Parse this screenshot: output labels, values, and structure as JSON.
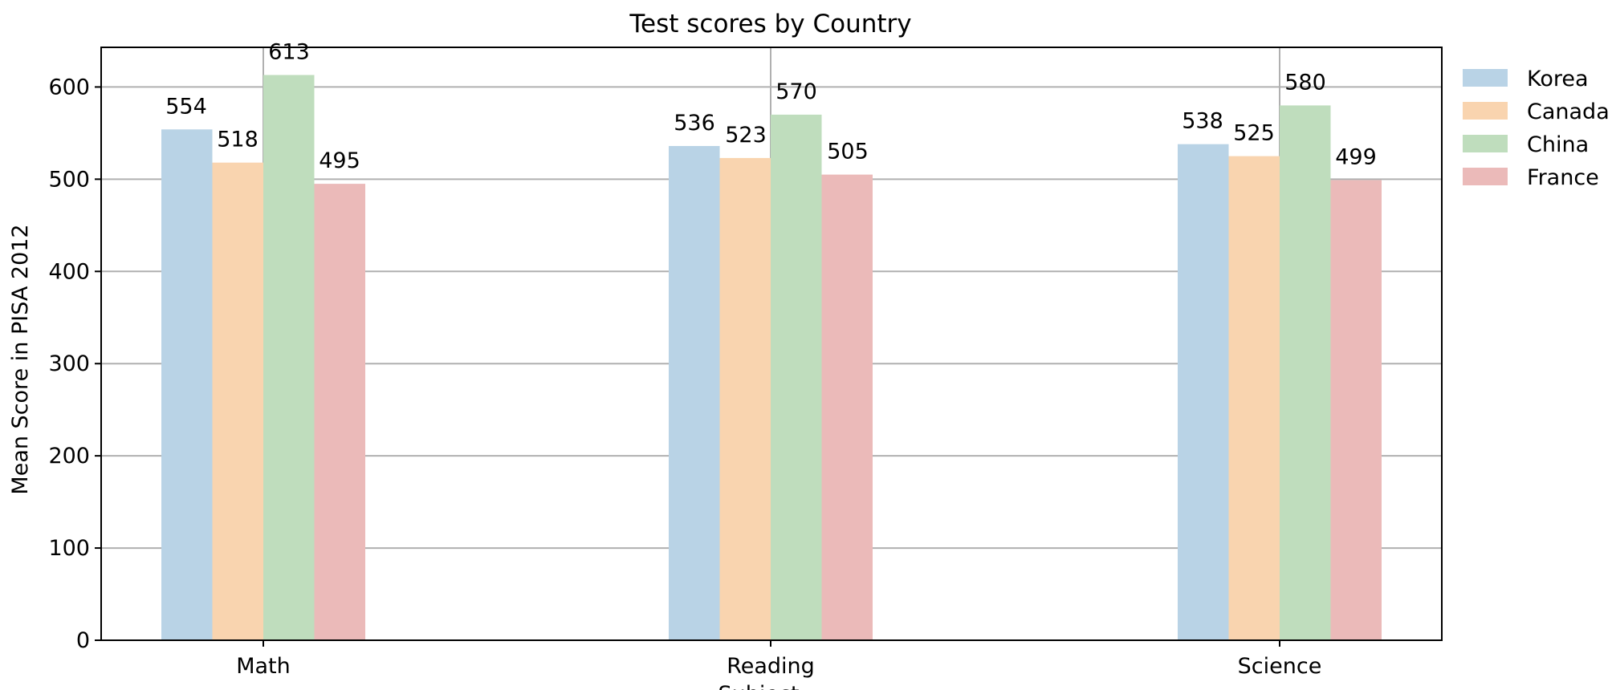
{
  "chart_data": {
    "type": "bar",
    "title": "Test scores by Country",
    "xlabel": "Subject",
    "ylabel": "Mean Score in PISA 2012",
    "categories": [
      "Math",
      "Reading",
      "Science"
    ],
    "series": [
      {
        "name": "Korea",
        "values": [
          554,
          536,
          538
        ],
        "color": "#b9d3e6"
      },
      {
        "name": "Canada",
        "values": [
          518,
          523,
          525
        ],
        "color": "#f9d4af"
      },
      {
        "name": "China",
        "values": [
          613,
          570,
          580
        ],
        "color": "#bfddbd"
      },
      {
        "name": "France",
        "values": [
          495,
          505,
          499
        ],
        "color": "#ebbab9"
      }
    ],
    "ylim": [
      0,
      643
    ],
    "yticks": [
      0,
      100,
      200,
      300,
      400,
      500,
      600
    ],
    "grid": true,
    "legend": "outside-top-right"
  }
}
